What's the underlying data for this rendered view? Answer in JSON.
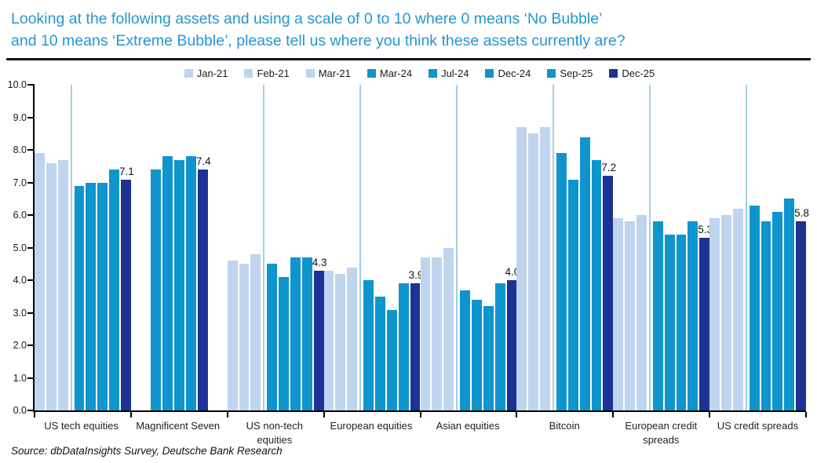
{
  "title_line1": "Looking at the following assets and using a scale of 0 to 10 where 0 means ‘No Bubble’",
  "title_line2": "and 10 means ‘Extreme Bubble’, please tell us where you think these assets currently are?",
  "source": "Source: dbDataInsights Survey, Deutsche Bank Research",
  "colors": {
    "title_blue": "#2596d2",
    "series_light": "#bfd4ee",
    "series_medium": "#0e95cd",
    "series_dark": "#1d3293",
    "divider_line": "#a4cfe3",
    "axis": "#000000"
  },
  "chart_data": {
    "type": "bar",
    "title": "Looking at the following assets and using a scale of 0 to 10 where 0 means ‘No Bubble’ and 10 means ‘Extreme Bubble’, please tell us where you think these assets currently are?",
    "ylim": [
      0,
      10
    ],
    "yticks": [
      "10.0",
      "9.0",
      "8.0",
      "7.0",
      "6.0",
      "5.0",
      "4.0",
      "3.0",
      "2.0",
      "1.0",
      "0.0"
    ],
    "grid": false,
    "legend_position": "top-center",
    "legend": [
      {
        "label": "Jan-21",
        "color": "#bfd4ee"
      },
      {
        "label": "Feb-21",
        "color": "#bfd4ee"
      },
      {
        "label": "Mar-21",
        "color": "#bfd4ee"
      },
      {
        "label": "Mar-24",
        "color": "#0e95cd"
      },
      {
        "label": "Jul-24",
        "color": "#0e95cd"
      },
      {
        "label": "Dec-24",
        "color": "#0e95cd"
      },
      {
        "label": "Sep-25",
        "color": "#0e95cd"
      },
      {
        "label": "Dec-25",
        "color": "#1d3293"
      }
    ],
    "groups": [
      {
        "label": "US tech equities",
        "divider": true,
        "values": [
          7.9,
          7.6,
          7.7,
          6.9,
          7.0,
          7.0,
          7.4,
          7.1
        ],
        "annotation": "7.1"
      },
      {
        "label": "Magnificent Seven",
        "divider": false,
        "values": [
          null,
          null,
          null,
          7.4,
          7.8,
          7.7,
          7.8,
          7.4
        ],
        "annotation": "7.4"
      },
      {
        "label": "US non-tech equities",
        "divider": true,
        "values": [
          4.6,
          4.5,
          4.8,
          4.5,
          4.1,
          4.7,
          4.7,
          4.3
        ],
        "annotation": "4.3"
      },
      {
        "label": "European equities",
        "divider": true,
        "values": [
          4.3,
          4.2,
          4.4,
          4.0,
          3.5,
          3.1,
          3.9,
          3.9
        ],
        "annotation": "3.9"
      },
      {
        "label": "Asian equities",
        "divider": true,
        "values": [
          4.7,
          4.7,
          5.0,
          3.7,
          3.4,
          3.2,
          3.9,
          4.0
        ],
        "annotation": "4.0"
      },
      {
        "label": "Bitcoin",
        "divider": true,
        "values": [
          8.7,
          8.5,
          8.7,
          7.9,
          7.1,
          8.4,
          7.7,
          7.2
        ],
        "annotation": "7.2"
      },
      {
        "label": "European credit spreads",
        "divider": true,
        "values": [
          5.9,
          5.8,
          6.0,
          5.8,
          5.4,
          5.4,
          5.8,
          5.3
        ],
        "annotation": "5.3"
      },
      {
        "label": "US credit spreads",
        "divider": true,
        "values": [
          5.9,
          6.0,
          6.2,
          6.3,
          5.8,
          6.1,
          6.5,
          5.8
        ],
        "annotation": "5.8"
      }
    ]
  }
}
